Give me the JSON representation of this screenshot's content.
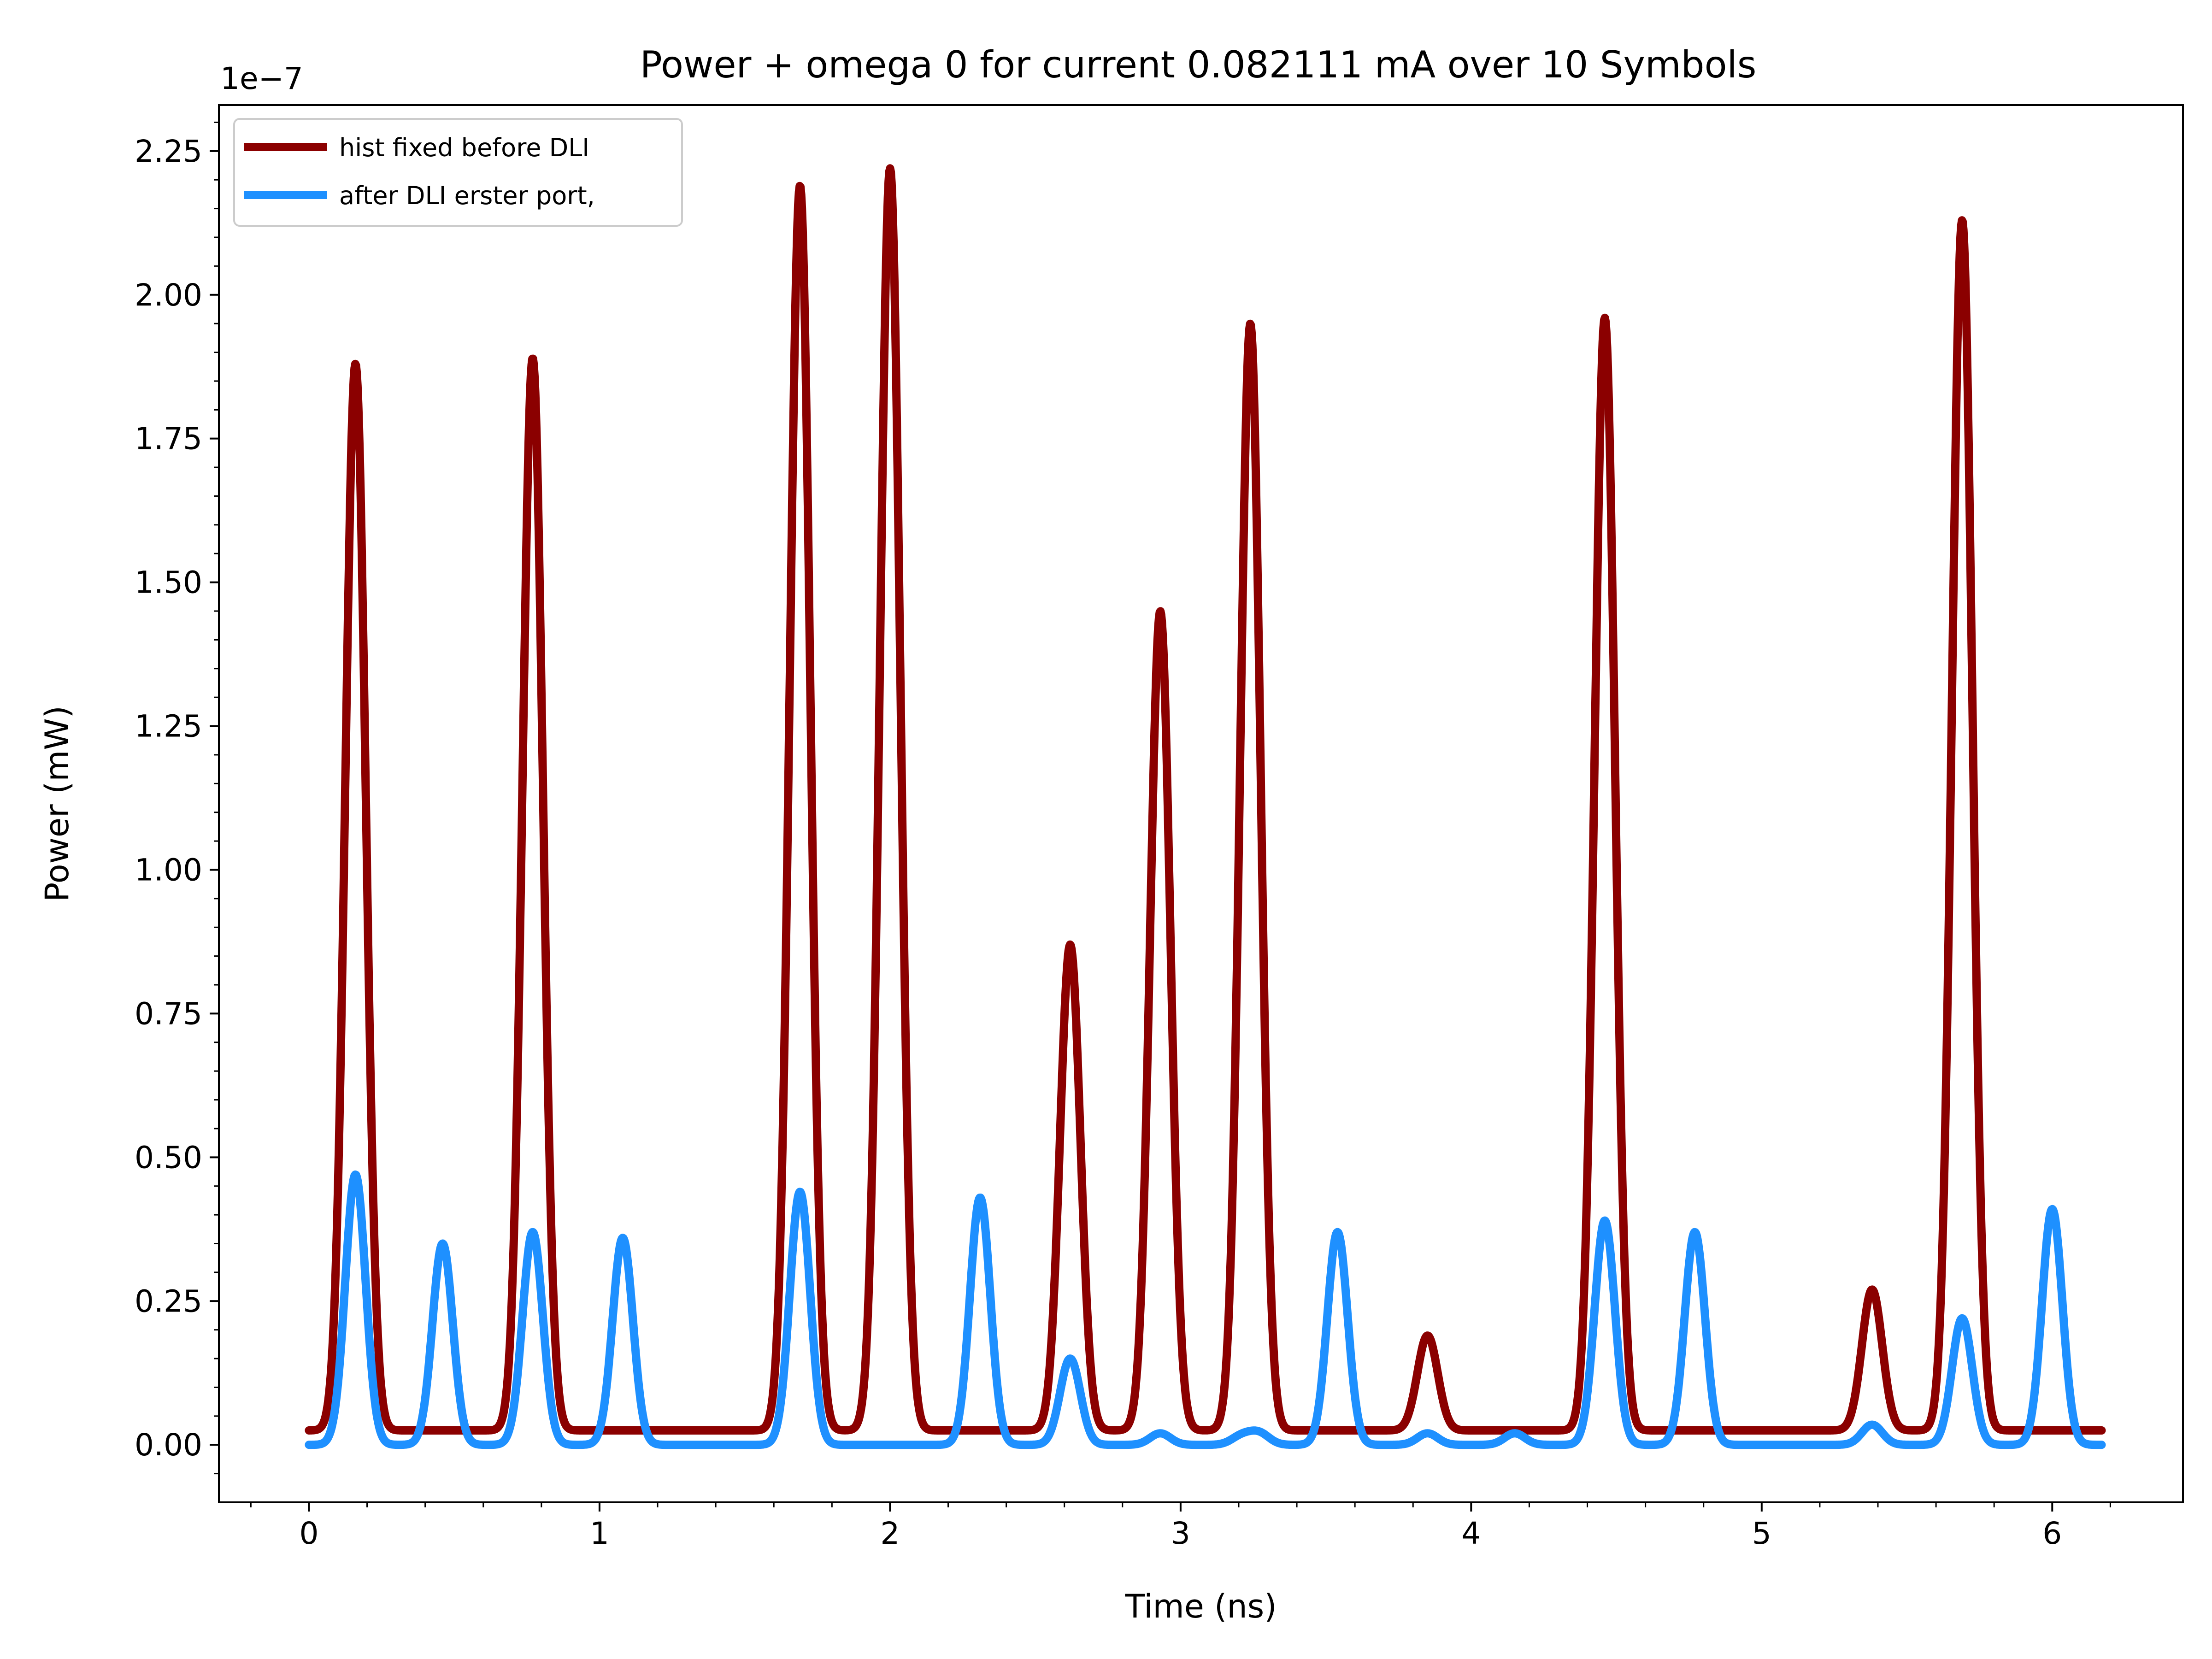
{
  "chart_data": {
    "type": "line",
    "title": "Power + omega 0 for current 0.082111 mA over 10 Symbols",
    "xlabel": "Time (ns)",
    "ylabel": "Power (mW)",
    "y_scale_label": "1e−7",
    "xlim": [
      -0.31,
      6.45
    ],
    "ylim": [
      -0.1,
      2.33
    ],
    "y_unit_multiplier": 1e-07,
    "x_ticks": [
      0,
      1,
      2,
      3,
      4,
      5,
      6
    ],
    "x_tick_labels": [
      "0",
      "1",
      "2",
      "3",
      "4",
      "5",
      "6"
    ],
    "y_ticks": [
      0.0,
      0.25,
      0.5,
      0.75,
      1.0,
      1.25,
      1.5,
      1.75,
      2.0,
      2.25
    ],
    "y_tick_labels": [
      "0.00",
      "0.25",
      "0.50",
      "0.75",
      "1.00",
      "1.25",
      "1.50",
      "1.75",
      "2.00",
      "2.25"
    ],
    "grid": false,
    "legend_position": "top-left",
    "x_range": [
      0,
      6.17
    ],
    "series": [
      {
        "name": "hist fixed before DLI",
        "color": "#8b0000",
        "baseline": 0.025,
        "peaks": [
          {
            "x": 0.16,
            "y": 1.88
          },
          {
            "x": 0.77,
            "y": 1.89
          },
          {
            "x": 1.69,
            "y": 2.19
          },
          {
            "x": 2.0,
            "y": 2.22
          },
          {
            "x": 2.62,
            "y": 0.87
          },
          {
            "x": 2.93,
            "y": 1.45
          },
          {
            "x": 3.24,
            "y": 1.95
          },
          {
            "x": 3.85,
            "y": 0.19
          },
          {
            "x": 4.46,
            "y": 1.96
          },
          {
            "x": 5.38,
            "y": 0.27
          },
          {
            "x": 5.69,
            "y": 2.13
          }
        ]
      },
      {
        "name": "after DLI erster port,",
        "color": "#1e90ff",
        "baseline": 0.0,
        "peaks": [
          {
            "x": 0.16,
            "y": 0.47
          },
          {
            "x": 0.46,
            "y": 0.35
          },
          {
            "x": 0.77,
            "y": 0.37
          },
          {
            "x": 1.08,
            "y": 0.36
          },
          {
            "x": 1.69,
            "y": 0.44
          },
          {
            "x": 2.31,
            "y": 0.43
          },
          {
            "x": 2.62,
            "y": 0.15
          },
          {
            "x": 2.93,
            "y": 0.02
          },
          {
            "x": 3.21,
            "y": 0.015
          },
          {
            "x": 3.27,
            "y": 0.02
          },
          {
            "x": 3.54,
            "y": 0.37
          },
          {
            "x": 3.85,
            "y": 0.02
          },
          {
            "x": 4.15,
            "y": 0.02
          },
          {
            "x": 4.46,
            "y": 0.39
          },
          {
            "x": 4.77,
            "y": 0.37
          },
          {
            "x": 5.38,
            "y": 0.035
          },
          {
            "x": 5.69,
            "y": 0.22
          },
          {
            "x": 6.0,
            "y": 0.41
          }
        ]
      }
    ]
  }
}
